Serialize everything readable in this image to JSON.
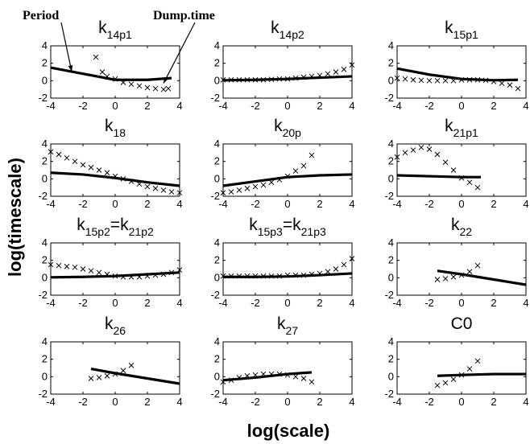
{
  "figure": {
    "xlabel": "log(scale)",
    "ylabel": "log(timescale)"
  },
  "annotations": {
    "period": "Period",
    "dump_time": "Dump.time"
  },
  "style": {
    "line_color": "#000000",
    "marker": "x",
    "background": "#ffffff"
  },
  "chart_data": [
    {
      "type": "line",
      "title": "k",
      "subscript": "14p1",
      "xlim": [
        -4,
        4
      ],
      "ylim": [
        -2,
        4
      ],
      "xticks": [
        -4,
        -2,
        0,
        2,
        4
      ],
      "yticks": [
        -2,
        0,
        2,
        4
      ],
      "series": [
        {
          "style": "line",
          "x": [
            -4,
            -2,
            0,
            2,
            3.5
          ],
          "y": [
            1.5,
            0.8,
            0.1,
            0.1,
            0.3
          ]
        },
        {
          "style": "x-markers",
          "x": [
            -1.2,
            -0.8,
            -0.5,
            0,
            0.5,
            1,
            1.5,
            2,
            2.5,
            3,
            3.3
          ],
          "y": [
            2.7,
            1.0,
            0.5,
            0.2,
            -0.2,
            -0.4,
            -0.6,
            -0.8,
            -0.9,
            -1.0,
            -0.9
          ]
        }
      ]
    },
    {
      "type": "line",
      "title": "k",
      "subscript": "14p2",
      "xlim": [
        -4,
        4
      ],
      "ylim": [
        -2,
        4
      ],
      "xticks": [
        -4,
        -2,
        0,
        2,
        4
      ],
      "yticks": [
        -2,
        0,
        2,
        4
      ],
      "series": [
        {
          "style": "line",
          "x": [
            -4,
            -2,
            0,
            2,
            4
          ],
          "y": [
            0.05,
            0.1,
            0.2,
            0.35,
            0.5
          ]
        },
        {
          "style": "x-markers",
          "x": [
            -4,
            -3.5,
            -3,
            -2.5,
            -2,
            -1.5,
            -1,
            -0.5,
            0,
            0.5,
            1,
            1.5,
            2,
            2.5,
            3,
            3.5,
            4
          ],
          "y": [
            0.1,
            0.1,
            0.1,
            0.1,
            0.1,
            0.1,
            0.15,
            0.2,
            0.2,
            0.3,
            0.4,
            0.5,
            0.6,
            0.8,
            1.0,
            1.3,
            1.8
          ]
        }
      ]
    },
    {
      "type": "line",
      "title": "k",
      "subscript": "15p1",
      "xlim": [
        -4,
        4
      ],
      "ylim": [
        -2,
        4
      ],
      "xticks": [
        -4,
        -2,
        0,
        2,
        4
      ],
      "yticks": [
        -2,
        0,
        2,
        4
      ],
      "series": [
        {
          "style": "line",
          "x": [
            -4,
            -2,
            0,
            2,
            3.5
          ],
          "y": [
            1.4,
            0.7,
            0.2,
            0.05,
            0.1
          ]
        },
        {
          "style": "x-markers",
          "x": [
            -4,
            -3.5,
            -3,
            -2.5,
            -2,
            -1.5,
            -1,
            -0.5,
            0,
            0.5,
            1,
            1.5,
            2,
            2.5,
            3,
            3.5
          ],
          "y": [
            0.3,
            0.2,
            0.1,
            0.05,
            0,
            0,
            0,
            0,
            0.1,
            0.1,
            0.1,
            0.05,
            -0.1,
            -0.3,
            -0.5,
            -0.9
          ]
        }
      ]
    },
    {
      "type": "line",
      "title": "k",
      "subscript": "18",
      "xlim": [
        -4,
        4
      ],
      "ylim": [
        -2,
        4
      ],
      "xticks": [
        -4,
        -2,
        0,
        2,
        4
      ],
      "yticks": [
        -2,
        0,
        2,
        4
      ],
      "series": [
        {
          "style": "line",
          "x": [
            -4,
            -2,
            0,
            2,
            4
          ],
          "y": [
            0.7,
            0.5,
            0.1,
            -0.4,
            -0.8
          ]
        },
        {
          "style": "x-markers",
          "x": [
            -4,
            -3.5,
            -3,
            -2.5,
            -2,
            -1.5,
            -1,
            -0.5,
            0,
            0.5,
            1,
            1.5,
            2,
            2.5,
            3,
            3.5,
            4
          ],
          "y": [
            3.1,
            2.8,
            2.4,
            2.0,
            1.6,
            1.3,
            1.0,
            0.7,
            0.3,
            0,
            -0.3,
            -0.6,
            -0.9,
            -1.1,
            -1.3,
            -1.5,
            -1.6
          ]
        }
      ]
    },
    {
      "type": "line",
      "title": "k",
      "subscript": "20p",
      "xlim": [
        -4,
        4
      ],
      "ylim": [
        -2,
        4
      ],
      "xticks": [
        -4,
        -2,
        0,
        2,
        4
      ],
      "yticks": [
        -2,
        0,
        2,
        4
      ],
      "series": [
        {
          "style": "line",
          "x": [
            -4,
            -2,
            0,
            2,
            4
          ],
          "y": [
            -0.8,
            -0.3,
            0.2,
            0.4,
            0.5
          ]
        },
        {
          "style": "x-markers",
          "x": [
            -4,
            -3.5,
            -3,
            -2.5,
            -2,
            -1.5,
            -1,
            -0.5,
            0,
            0.5,
            1,
            1.5
          ],
          "y": [
            -1.6,
            -1.5,
            -1.3,
            -1.1,
            -0.9,
            -0.7,
            -0.4,
            -0.1,
            0.3,
            0.9,
            1.5,
            2.7
          ]
        }
      ]
    },
    {
      "type": "line",
      "title": "k",
      "subscript": "21p1",
      "xlim": [
        -4,
        4
      ],
      "ylim": [
        -2,
        4
      ],
      "xticks": [
        -4,
        -2,
        0,
        2,
        4
      ],
      "yticks": [
        -2,
        0,
        2,
        4
      ],
      "series": [
        {
          "style": "line",
          "x": [
            -4,
            -2,
            0,
            1.2
          ],
          "y": [
            0.4,
            0.3,
            0.2,
            0.2
          ]
        },
        {
          "style": "x-markers",
          "x": [
            -4,
            -3.5,
            -3,
            -2.5,
            -2,
            -1.5,
            -1,
            -0.5,
            0,
            0.5,
            1
          ],
          "y": [
            2.5,
            3.0,
            3.3,
            3.6,
            3.4,
            2.8,
            1.9,
            1.0,
            0.1,
            -0.4,
            -1.0
          ]
        }
      ]
    },
    {
      "type": "line",
      "title": "k",
      "subscript": "15p2",
      "title_b": "=k",
      "subscript_b": "21p2",
      "xlim": [
        -4,
        4
      ],
      "ylim": [
        -2,
        4
      ],
      "xticks": [
        -4,
        -2,
        0,
        2,
        4
      ],
      "yticks": [
        -2,
        0,
        2,
        4
      ],
      "series": [
        {
          "style": "line",
          "x": [
            -4,
            -2,
            0,
            2,
            4
          ],
          "y": [
            0.05,
            0.1,
            0.2,
            0.4,
            0.6
          ]
        },
        {
          "style": "x-markers",
          "x": [
            -4,
            -3.5,
            -3,
            -2.5,
            -2,
            -1.5,
            -1,
            -0.5,
            0,
            0.5,
            1,
            1.5,
            2,
            2.5,
            3,
            3.5,
            4
          ],
          "y": [
            1.5,
            1.4,
            1.3,
            1.2,
            1.0,
            0.8,
            0.6,
            0.4,
            0.2,
            0.1,
            0.1,
            0.1,
            0.2,
            0.3,
            0.4,
            0.6,
            0.9
          ]
        }
      ]
    },
    {
      "type": "line",
      "title": "k",
      "subscript": "15p3",
      "title_b": "=k",
      "subscript_b": "21p3",
      "xlim": [
        -4,
        4
      ],
      "ylim": [
        -2,
        4
      ],
      "xticks": [
        -4,
        -2,
        0,
        2,
        4
      ],
      "yticks": [
        -2,
        0,
        2,
        4
      ],
      "series": [
        {
          "style": "line",
          "x": [
            -4,
            -2,
            0,
            2,
            4
          ],
          "y": [
            0.1,
            0.1,
            0.15,
            0.3,
            0.5
          ]
        },
        {
          "style": "x-markers",
          "x": [
            -4,
            -3.5,
            -3,
            -2.5,
            -2,
            -1.5,
            -1,
            -0.5,
            0,
            0.5,
            1,
            1.5,
            2,
            2.5,
            3,
            3.5,
            4
          ],
          "y": [
            0.2,
            0.2,
            0.2,
            0.2,
            0.2,
            0.2,
            0.2,
            0.2,
            0.3,
            0.3,
            0.3,
            0.4,
            0.5,
            0.7,
            1.0,
            1.5,
            2.2
          ]
        }
      ]
    },
    {
      "type": "line",
      "title": "k",
      "subscript": "22",
      "xlim": [
        -4,
        4
      ],
      "ylim": [
        -2,
        4
      ],
      "xticks": [
        -4,
        -2,
        0,
        2,
        4
      ],
      "yticks": [
        -2,
        0,
        2,
        4
      ],
      "series": [
        {
          "style": "line",
          "x": [
            -1.5,
            0,
            2,
            4
          ],
          "y": [
            0.8,
            0.4,
            -0.2,
            -0.8
          ]
        },
        {
          "style": "x-markers",
          "x": [
            -1.5,
            -1,
            -0.5,
            0,
            0.5,
            1
          ],
          "y": [
            -0.2,
            -0.1,
            0.1,
            0.3,
            0.7,
            1.4
          ]
        }
      ]
    },
    {
      "type": "line",
      "title": "k",
      "subscript": "26",
      "xlim": [
        -4,
        4
      ],
      "ylim": [
        -2,
        4
      ],
      "xticks": [
        -4,
        -2,
        0,
        2,
        4
      ],
      "yticks": [
        -2,
        0,
        2,
        4
      ],
      "series": [
        {
          "style": "line",
          "x": [
            -1.5,
            0,
            2,
            4
          ],
          "y": [
            0.9,
            0.4,
            -0.2,
            -0.8
          ]
        },
        {
          "style": "x-markers",
          "x": [
            -1.5,
            -1,
            -0.5,
            0,
            0.5,
            1
          ],
          "y": [
            -0.2,
            -0.1,
            0.1,
            0.3,
            0.7,
            1.3
          ]
        }
      ]
    },
    {
      "type": "line",
      "title": "k",
      "subscript": "27",
      "xlim": [
        -4,
        4
      ],
      "ylim": [
        -2,
        4
      ],
      "xticks": [
        -4,
        -2,
        0,
        2,
        4
      ],
      "yticks": [
        -2,
        0,
        2,
        4
      ],
      "series": [
        {
          "style": "line",
          "x": [
            -4,
            -2,
            0,
            1.5
          ],
          "y": [
            -0.4,
            -0.1,
            0.3,
            0.5
          ]
        },
        {
          "style": "x-markers",
          "x": [
            -4,
            -3.5,
            -3,
            -2.5,
            -2,
            -1.5,
            -1,
            -0.5,
            0,
            0.5,
            1,
            1.5
          ],
          "y": [
            -0.6,
            -0.4,
            -0.1,
            0.1,
            0.2,
            0.3,
            0.3,
            0.3,
            0.2,
            0,
            -0.2,
            -0.6
          ]
        }
      ]
    },
    {
      "type": "line",
      "title": "C0",
      "subscript": "",
      "xlim": [
        -4,
        4
      ],
      "ylim": [
        -2,
        4
      ],
      "xticks": [
        -4,
        -2,
        0,
        2,
        4
      ],
      "yticks": [
        -2,
        0,
        2,
        4
      ],
      "series": [
        {
          "style": "line",
          "x": [
            -1.5,
            0,
            2,
            4
          ],
          "y": [
            0.1,
            0.2,
            0.3,
            0.3
          ]
        },
        {
          "style": "x-markers",
          "x": [
            -1.5,
            -1,
            -0.5,
            0,
            0.5,
            1
          ],
          "y": [
            -1.0,
            -0.7,
            -0.3,
            0.2,
            0.9,
            1.8
          ]
        }
      ]
    }
  ]
}
